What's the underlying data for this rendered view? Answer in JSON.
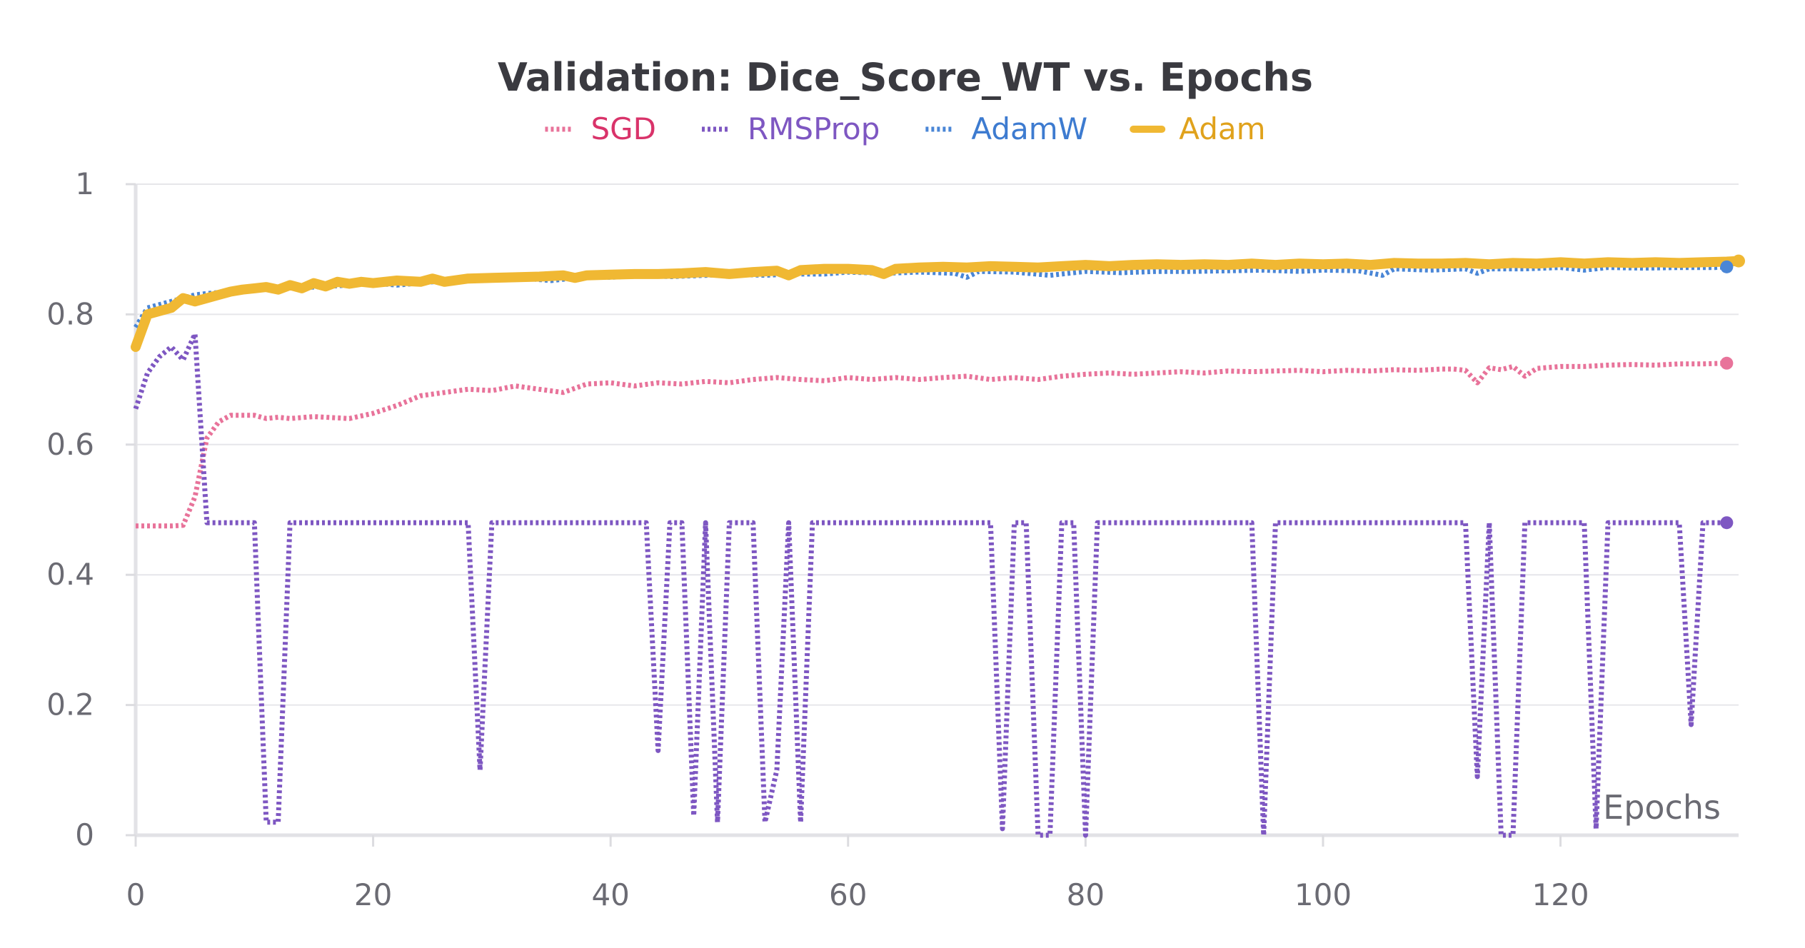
{
  "chart_data": {
    "type": "line",
    "title": "Validation: Dice_Score_WT vs. Epochs",
    "xlabel": "Epochs",
    "ylabel": "",
    "xlim": [
      0,
      135
    ],
    "ylim": [
      0,
      1
    ],
    "x_ticks": [
      "0",
      "20",
      "40",
      "60",
      "80",
      "100",
      "120"
    ],
    "y_ticks": [
      "0",
      "0.2",
      "0.4",
      "0.6",
      "0.8",
      "1"
    ],
    "grid": true,
    "legend_position": "top-center",
    "series": [
      {
        "name": "SGD",
        "color": "#e8739a",
        "label_color": "#d9336a",
        "style": "dotted",
        "end_marker": true,
        "points": [
          [
            0,
            0.475
          ],
          [
            1,
            0.475
          ],
          [
            2,
            0.475
          ],
          [
            3,
            0.475
          ],
          [
            4,
            0.476
          ],
          [
            5,
            0.52
          ],
          [
            6,
            0.61
          ],
          [
            7,
            0.635
          ],
          [
            8,
            0.645
          ],
          [
            9,
            0.645
          ],
          [
            10,
            0.645
          ],
          [
            11,
            0.64
          ],
          [
            12,
            0.642
          ],
          [
            13,
            0.64
          ],
          [
            15,
            0.643
          ],
          [
            18,
            0.64
          ],
          [
            20,
            0.648
          ],
          [
            22,
            0.66
          ],
          [
            24,
            0.675
          ],
          [
            26,
            0.68
          ],
          [
            28,
            0.685
          ],
          [
            30,
            0.683
          ],
          [
            32,
            0.69
          ],
          [
            34,
            0.685
          ],
          [
            36,
            0.68
          ],
          [
            38,
            0.693
          ],
          [
            40,
            0.695
          ],
          [
            42,
            0.69
          ],
          [
            44,
            0.695
          ],
          [
            46,
            0.693
          ],
          [
            48,
            0.697
          ],
          [
            50,
            0.695
          ],
          [
            52,
            0.7
          ],
          [
            54,
            0.703
          ],
          [
            56,
            0.7
          ],
          [
            58,
            0.698
          ],
          [
            60,
            0.703
          ],
          [
            62,
            0.7
          ],
          [
            64,
            0.703
          ],
          [
            66,
            0.7
          ],
          [
            68,
            0.703
          ],
          [
            70,
            0.705
          ],
          [
            72,
            0.7
          ],
          [
            74,
            0.703
          ],
          [
            76,
            0.7
          ],
          [
            78,
            0.705
          ],
          [
            80,
            0.708
          ],
          [
            82,
            0.71
          ],
          [
            84,
            0.708
          ],
          [
            86,
            0.71
          ],
          [
            88,
            0.712
          ],
          [
            90,
            0.71
          ],
          [
            92,
            0.713
          ],
          [
            94,
            0.712
          ],
          [
            96,
            0.713
          ],
          [
            98,
            0.714
          ],
          [
            100,
            0.712
          ],
          [
            102,
            0.714
          ],
          [
            104,
            0.713
          ],
          [
            106,
            0.715
          ],
          [
            108,
            0.714
          ],
          [
            110,
            0.716
          ],
          [
            111,
            0.716
          ],
          [
            112,
            0.714
          ],
          [
            113,
            0.695
          ],
          [
            114,
            0.718
          ],
          [
            115,
            0.715
          ],
          [
            116,
            0.72
          ],
          [
            117,
            0.705
          ],
          [
            118,
            0.717
          ],
          [
            120,
            0.72
          ],
          [
            122,
            0.72
          ],
          [
            124,
            0.722
          ],
          [
            126,
            0.723
          ],
          [
            128,
            0.722
          ],
          [
            130,
            0.724
          ],
          [
            132,
            0.724
          ],
          [
            134,
            0.725
          ]
        ]
      },
      {
        "name": "RMSProp",
        "color": "#7e57c2",
        "label_color": "#7e57c2",
        "style": "dotted",
        "end_marker": true,
        "points": [
          [
            0,
            0.655
          ],
          [
            1,
            0.71
          ],
          [
            2,
            0.735
          ],
          [
            3,
            0.75
          ],
          [
            4,
            0.73
          ],
          [
            5,
            0.77
          ],
          [
            6,
            0.48
          ],
          [
            10,
            0.48
          ],
          [
            11,
            0.02
          ],
          [
            12,
            0.02
          ],
          [
            13,
            0.48
          ],
          [
            28,
            0.48
          ],
          [
            29,
            0.1
          ],
          [
            30,
            0.48
          ],
          [
            43,
            0.48
          ],
          [
            44,
            0.13
          ],
          [
            45,
            0.48
          ],
          [
            46,
            0.48
          ],
          [
            47,
            0.03
          ],
          [
            48,
            0.48
          ],
          [
            49,
            0.02
          ],
          [
            50,
            0.48
          ],
          [
            52,
            0.48
          ],
          [
            53,
            0.02
          ],
          [
            54,
            0.1
          ],
          [
            55,
            0.48
          ],
          [
            56,
            0.02
          ],
          [
            57,
            0.48
          ],
          [
            72,
            0.48
          ],
          [
            73,
            0.01
          ],
          [
            74,
            0.48
          ],
          [
            75,
            0.48
          ],
          [
            76,
            0.0
          ],
          [
            77,
            0.0
          ],
          [
            78,
            0.48
          ],
          [
            79,
            0.48
          ],
          [
            80,
            0.0
          ],
          [
            81,
            0.48
          ],
          [
            94,
            0.48
          ],
          [
            95,
            0.0
          ],
          [
            96,
            0.48
          ],
          [
            111,
            0.48
          ],
          [
            112,
            0.48
          ],
          [
            113,
            0.09
          ],
          [
            114,
            0.48
          ],
          [
            115,
            0.0
          ],
          [
            116,
            0.0
          ],
          [
            117,
            0.48
          ],
          [
            122,
            0.48
          ],
          [
            123,
            0.01
          ],
          [
            124,
            0.48
          ],
          [
            130,
            0.48
          ],
          [
            131,
            0.17
          ],
          [
            132,
            0.48
          ],
          [
            134,
            0.48
          ]
        ]
      },
      {
        "name": "AdamW",
        "color": "#4a86d6",
        "label_color": "#3d7bd0",
        "style": "dotted",
        "end_marker": true,
        "points": [
          [
            0,
            0.78
          ],
          [
            1,
            0.81
          ],
          [
            2,
            0.815
          ],
          [
            3,
            0.82
          ],
          [
            4,
            0.825
          ],
          [
            5,
            0.83
          ],
          [
            6,
            0.832
          ],
          [
            8,
            0.835
          ],
          [
            10,
            0.838
          ],
          [
            12,
            0.84
          ],
          [
            15,
            0.842
          ],
          [
            18,
            0.845
          ],
          [
            20,
            0.848
          ],
          [
            22,
            0.845
          ],
          [
            25,
            0.85
          ],
          [
            28,
            0.852
          ],
          [
            30,
            0.853
          ],
          [
            33,
            0.855
          ],
          [
            35,
            0.852
          ],
          [
            38,
            0.858
          ],
          [
            40,
            0.857
          ],
          [
            43,
            0.86
          ],
          [
            45,
            0.858
          ],
          [
            48,
            0.86
          ],
          [
            50,
            0.862
          ],
          [
            53,
            0.86
          ],
          [
            55,
            0.862
          ],
          [
            58,
            0.862
          ],
          [
            60,
            0.865
          ],
          [
            63,
            0.863
          ],
          [
            66,
            0.865
          ],
          [
            69,
            0.863
          ],
          [
            70,
            0.857
          ],
          [
            71,
            0.866
          ],
          [
            74,
            0.865
          ],
          [
            77,
            0.86
          ],
          [
            80,
            0.866
          ],
          [
            83,
            0.864
          ],
          [
            86,
            0.866
          ],
          [
            89,
            0.866
          ],
          [
            92,
            0.867
          ],
          [
            95,
            0.868
          ],
          [
            98,
            0.866
          ],
          [
            100,
            0.868
          ],
          [
            103,
            0.867
          ],
          [
            105,
            0.86
          ],
          [
            106,
            0.87
          ],
          [
            109,
            0.868
          ],
          [
            112,
            0.87
          ],
          [
            113,
            0.863
          ],
          [
            114,
            0.87
          ],
          [
            117,
            0.87
          ],
          [
            120,
            0.872
          ],
          [
            122,
            0.868
          ],
          [
            124,
            0.872
          ],
          [
            127,
            0.871
          ],
          [
            130,
            0.872
          ],
          [
            133,
            0.872
          ],
          [
            134,
            0.873
          ]
        ]
      },
      {
        "name": "Adam",
        "color": "#f0b833",
        "label_color": "#e0a21c",
        "style": "solid",
        "end_marker": true,
        "points": [
          [
            0,
            0.75
          ],
          [
            1,
            0.8
          ],
          [
            2,
            0.805
          ],
          [
            3,
            0.81
          ],
          [
            4,
            0.825
          ],
          [
            5,
            0.82
          ],
          [
            6,
            0.825
          ],
          [
            7,
            0.83
          ],
          [
            8,
            0.835
          ],
          [
            9,
            0.838
          ],
          [
            10,
            0.84
          ],
          [
            11,
            0.842
          ],
          [
            12,
            0.838
          ],
          [
            13,
            0.845
          ],
          [
            14,
            0.84
          ],
          [
            15,
            0.848
          ],
          [
            16,
            0.843
          ],
          [
            17,
            0.85
          ],
          [
            18,
            0.847
          ],
          [
            19,
            0.85
          ],
          [
            20,
            0.848
          ],
          [
            22,
            0.852
          ],
          [
            24,
            0.85
          ],
          [
            25,
            0.855
          ],
          [
            26,
            0.85
          ],
          [
            28,
            0.855
          ],
          [
            30,
            0.856
          ],
          [
            32,
            0.857
          ],
          [
            34,
            0.858
          ],
          [
            36,
            0.86
          ],
          [
            37,
            0.856
          ],
          [
            38,
            0.86
          ],
          [
            40,
            0.861
          ],
          [
            42,
            0.862
          ],
          [
            44,
            0.862
          ],
          [
            46,
            0.863
          ],
          [
            48,
            0.865
          ],
          [
            50,
            0.862
          ],
          [
            52,
            0.865
          ],
          [
            54,
            0.867
          ],
          [
            55,
            0.86
          ],
          [
            56,
            0.868
          ],
          [
            58,
            0.87
          ],
          [
            60,
            0.87
          ],
          [
            62,
            0.868
          ],
          [
            63,
            0.862
          ],
          [
            64,
            0.87
          ],
          [
            66,
            0.872
          ],
          [
            68,
            0.873
          ],
          [
            70,
            0.872
          ],
          [
            72,
            0.874
          ],
          [
            74,
            0.873
          ],
          [
            76,
            0.872
          ],
          [
            78,
            0.874
          ],
          [
            80,
            0.876
          ],
          [
            82,
            0.874
          ],
          [
            84,
            0.876
          ],
          [
            86,
            0.877
          ],
          [
            88,
            0.876
          ],
          [
            90,
            0.877
          ],
          [
            92,
            0.876
          ],
          [
            94,
            0.878
          ],
          [
            96,
            0.876
          ],
          [
            98,
            0.878
          ],
          [
            100,
            0.877
          ],
          [
            102,
            0.878
          ],
          [
            104,
            0.876
          ],
          [
            106,
            0.879
          ],
          [
            108,
            0.878
          ],
          [
            110,
            0.878
          ],
          [
            112,
            0.879
          ],
          [
            114,
            0.877
          ],
          [
            116,
            0.879
          ],
          [
            118,
            0.878
          ],
          [
            120,
            0.88
          ],
          [
            122,
            0.878
          ],
          [
            124,
            0.88
          ],
          [
            126,
            0.879
          ],
          [
            128,
            0.88
          ],
          [
            130,
            0.879
          ],
          [
            132,
            0.88
          ],
          [
            134,
            0.881
          ],
          [
            135,
            0.882
          ]
        ]
      }
    ]
  }
}
